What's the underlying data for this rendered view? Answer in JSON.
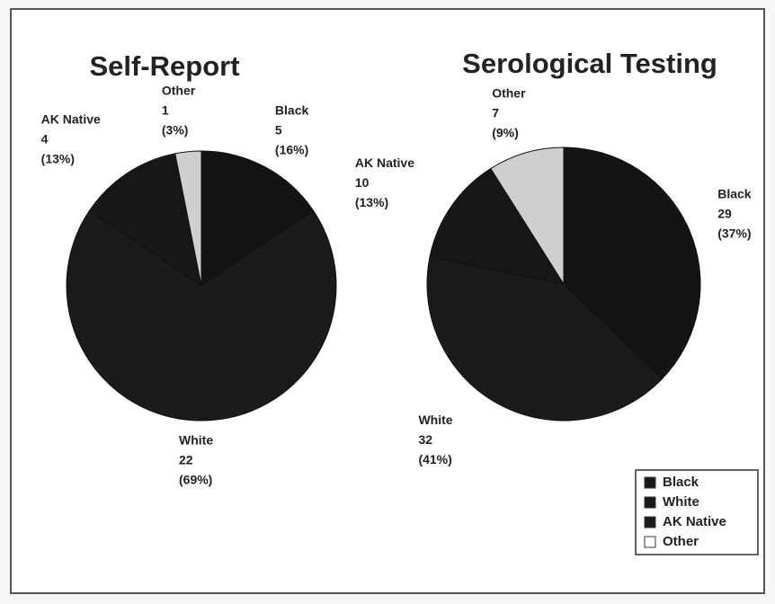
{
  "chart_data": [
    {
      "type": "pie",
      "title": "Self-Report",
      "categories": [
        "Black",
        "White",
        "AK Native",
        "Other"
      ],
      "values": [
        5,
        22,
        4,
        1
      ],
      "percent_labels": [
        "(16%)",
        "(69%)",
        "(13%)",
        "(3%)"
      ],
      "colors": [
        "#141414",
        "#1b1b1b",
        "#171717",
        "#cfcfcf"
      ]
    },
    {
      "type": "pie",
      "title": "Serological Testing",
      "categories": [
        "Black",
        "White",
        "AK Native",
        "Other"
      ],
      "values": [
        29,
        32,
        10,
        7
      ],
      "percent_labels": [
        "(37%)",
        "(41%)",
        "(13%)",
        "(9%)"
      ],
      "colors": [
        "#141414",
        "#1b1b1b",
        "#171717",
        "#cfcfcf"
      ],
      "legend": {
        "entries": [
          "Black",
          "White",
          "AK Native",
          "Other"
        ],
        "colors": [
          "#1a1a1a",
          "#1a1a1a",
          "#1a1a1a",
          "#ffffff"
        ]
      }
    }
  ]
}
